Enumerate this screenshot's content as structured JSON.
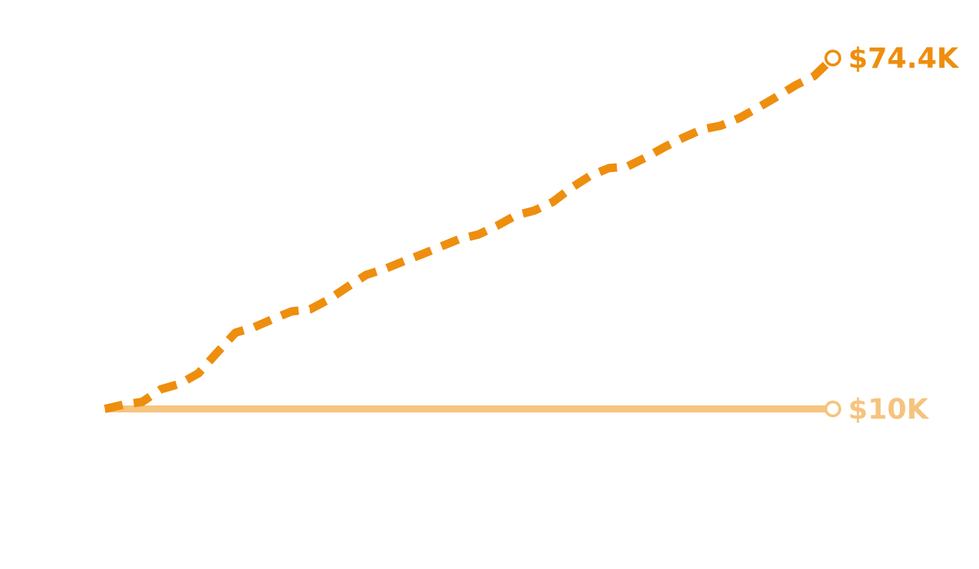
{
  "chart_data": {
    "type": "line",
    "x_count": 40,
    "ylim": [
      0,
      100000
    ],
    "grid": false,
    "axes_visible": false,
    "series": [
      {
        "id": "growth",
        "end_label": "$74.4K",
        "color": "#EE8E0E",
        "line_style": "dashed",
        "values": [
          10000,
          10800,
          11300,
          13600,
          14600,
          16500,
          20300,
          24000,
          25000,
          26500,
          27900,
          28300,
          30100,
          32400,
          34600,
          35700,
          37100,
          38400,
          39800,
          41200,
          42000,
          43600,
          45500,
          46400,
          48000,
          50600,
          52800,
          54200,
          54500,
          56200,
          58100,
          59800,
          61300,
          62000,
          63400,
          65300,
          67300,
          69400,
          71100,
          74400
        ]
      },
      {
        "id": "baseline",
        "end_label": "$10K",
        "color": "#F5C47E",
        "line_style": "solid",
        "values": [
          10000,
          10000,
          10000,
          10000,
          10000,
          10000,
          10000,
          10000,
          10000,
          10000,
          10000,
          10000,
          10000,
          10000,
          10000,
          10000,
          10000,
          10000,
          10000,
          10000,
          10000,
          10000,
          10000,
          10000,
          10000,
          10000,
          10000,
          10000,
          10000,
          10000,
          10000,
          10000,
          10000,
          10000,
          10000,
          10000,
          10000,
          10000,
          10000,
          10000
        ]
      }
    ]
  }
}
